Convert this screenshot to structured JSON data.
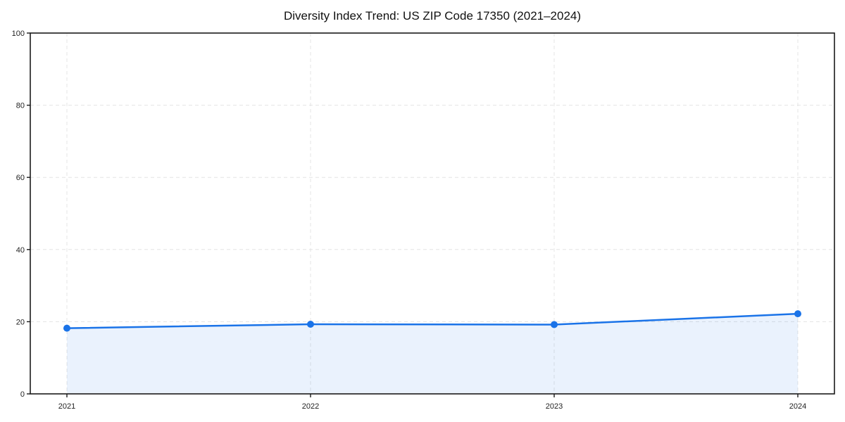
{
  "chart_data": {
    "type": "line",
    "title": "Diversity Index Trend: US ZIP Code 17350 (2021–2024)",
    "x": [
      "2021",
      "2022",
      "2023",
      "2024"
    ],
    "series": [
      {
        "name": "Diversity Index",
        "values": [
          18.2,
          19.3,
          19.2,
          22.2
        ]
      }
    ],
    "xlabel": "",
    "ylabel": "",
    "ylim": [
      0,
      100
    ],
    "yticks": [
      0,
      20,
      40,
      60,
      80,
      100
    ],
    "grid": "dashed-both-axes",
    "legend_position": "none",
    "area_fill_to_zero": true,
    "marker": "circle",
    "colors": {
      "line": "#1a73e8",
      "marker": "#1a73e8",
      "area": "rgba(26,115,232,0.09)",
      "grid": "#e4e4e4",
      "axis": "#1a1a1a",
      "tick_label": "#1f1f1f",
      "title": "#111111",
      "background": "#ffffff"
    }
  }
}
